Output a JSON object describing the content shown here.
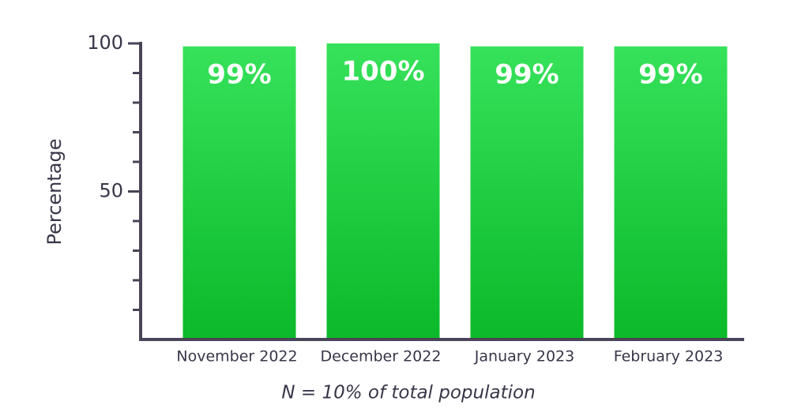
{
  "chart_data": {
    "type": "bar",
    "categories": [
      "November 2022",
      "December 2022",
      "January 2023",
      "February 2023"
    ],
    "values": [
      99,
      100,
      99,
      99
    ],
    "value_labels": [
      "99%",
      "100%",
      "99%",
      "99%"
    ],
    "color": "#1fcc3f",
    "y_label": "Percentage",
    "note": "N = 10% of total population",
    "ylim": [
      0,
      100
    ],
    "yticks": [
      50,
      100
    ],
    "minor_yticks": [
      10,
      20,
      30,
      40,
      60,
      70,
      80,
      90
    ],
    "grid": false
  }
}
